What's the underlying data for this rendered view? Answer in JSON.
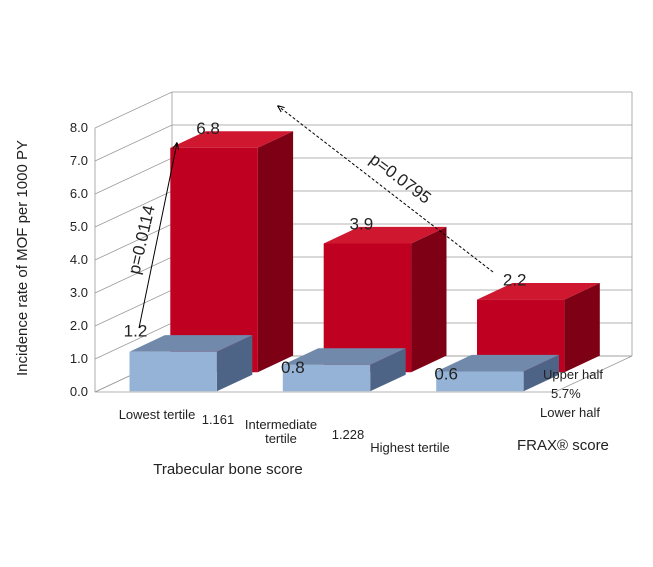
{
  "chart_data": {
    "type": "bar",
    "variant": "3d-column",
    "title": "",
    "ylabel": "Incidence rate of MOF per 1000 PY",
    "xlabel": "Trabecular bone score",
    "zlabel": "FRAX® score",
    "ylim": [
      0,
      8
    ],
    "yticks": [
      "0.0",
      "1.0",
      "2.0",
      "3.0",
      "4.0",
      "5.0",
      "6.0",
      "7.0",
      "8.0"
    ],
    "categories": [
      "Lowest tertile",
      "Intermediate tertile",
      "Highest tertile"
    ],
    "category_display": [
      "Lowest tertile",
      "Intermediate\ntertile",
      "Highest tertile"
    ],
    "x_cutpoints": [
      "1.161",
      "1.228"
    ],
    "depth_categories": [
      "Lower half",
      "Upper half"
    ],
    "depth_cutpoint": "5.7%",
    "series": [
      {
        "name": "Lower half",
        "values": [
          1.2,
          0.8,
          0.6
        ],
        "labels": [
          "1.2",
          "0.8",
          "0.6"
        ],
        "color": "#95b3d7"
      },
      {
        "name": "Upper half",
        "values": [
          6.8,
          3.9,
          2.2
        ],
        "labels": [
          "6.8",
          "3.9",
          "2.2"
        ],
        "color": "#c00020"
      }
    ],
    "annotations": [
      {
        "text": "p=0.0114",
        "style": "solid-arrow"
      },
      {
        "text": "p=0.0795",
        "style": "dashed-arrow"
      }
    ],
    "grid": true,
    "legend": "none"
  },
  "colors": {
    "red_front": "#c00020",
    "red_top": "#cf1730",
    "red_side": "#7d0014",
    "blue_front": "#95b3d7",
    "blue_top": "#7189ab",
    "blue_side": "#4e6486"
  }
}
